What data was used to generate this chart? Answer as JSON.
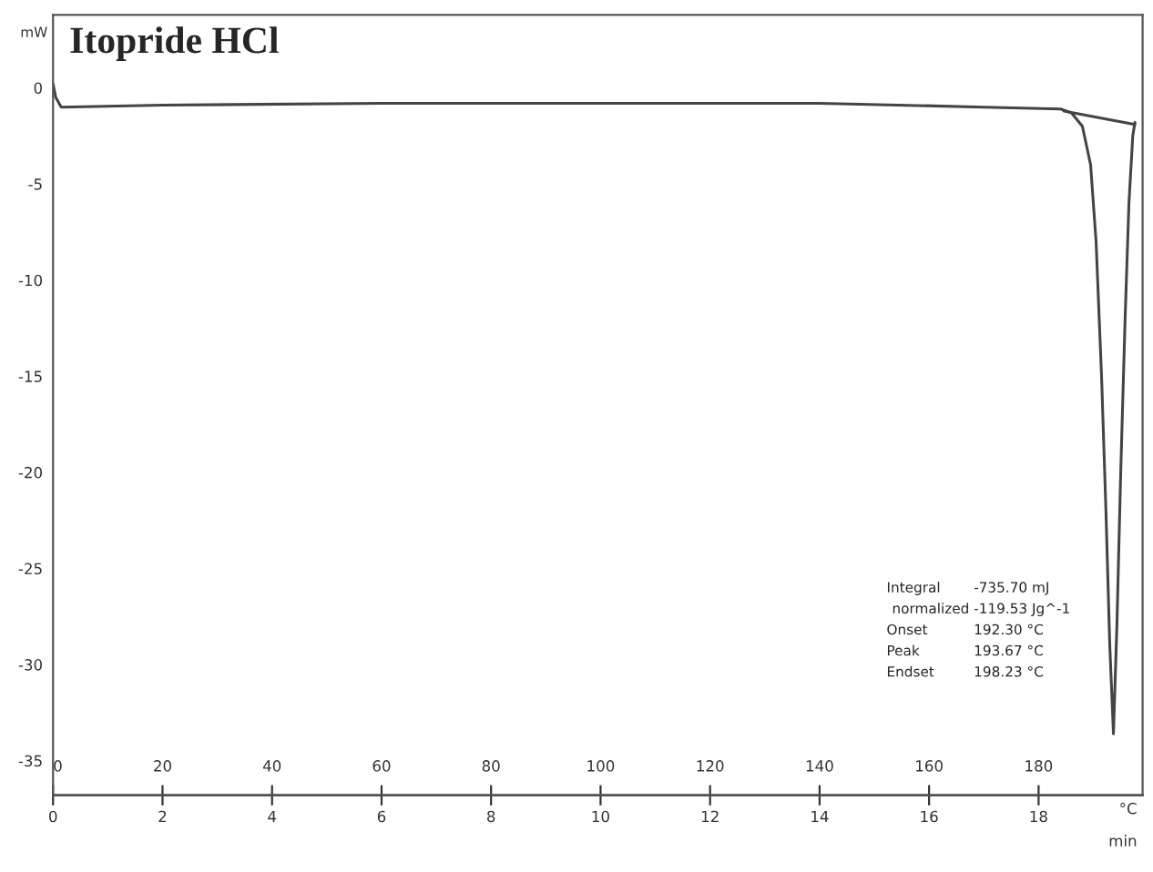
{
  "chart_data": {
    "type": "line",
    "title": "Itopride HCl",
    "ylabel": "mW",
    "xlabel": "°C",
    "x2label": "min",
    "xlim": [
      0,
      199
    ],
    "xticks": [
      0,
      20,
      40,
      60,
      80,
      100,
      120,
      140,
      160,
      180
    ],
    "x2lim": [
      0,
      19.9
    ],
    "x2ticks": [
      0,
      2,
      4,
      6,
      8,
      10,
      12,
      14,
      16,
      18
    ],
    "ylim": [
      -36.8,
      3.8
    ],
    "yticks": [
      0,
      -5,
      -10,
      -15,
      -20,
      -25,
      -30,
      -35
    ],
    "grid": false,
    "legend": false,
    "series": [
      {
        "color": "#444444",
        "x": [
          0,
          0.5,
          1.5,
          20,
          60,
          100,
          140,
          170,
          184,
          186,
          188,
          189.5,
          190.5,
          191.5,
          192.3,
          193,
          193.67,
          194.3,
          195,
          195.8,
          196.5,
          197.2,
          197.6
        ],
        "values": [
          0.2,
          -0.5,
          -1,
          -0.9,
          -0.8,
          -0.8,
          -0.8,
          -1,
          -1.1,
          -1.3,
          -2,
          -4,
          -8,
          -15,
          -22,
          -29,
          -33.6,
          -28,
          -20,
          -12,
          -6,
          -2.5,
          -1.8
        ]
      },
      {
        "color": "#444444",
        "x": [
          184.6,
          197.6
        ],
        "values": [
          -1.2,
          -1.9
        ]
      }
    ],
    "annotations": [
      "Integral",
      "-735.70 mJ",
      "normalized",
      "-119.53 Jg^-1",
      "Onset",
      "192.30 °C",
      "Peak",
      "193.67 °C",
      "Endset",
      "198.23 °C"
    ]
  }
}
